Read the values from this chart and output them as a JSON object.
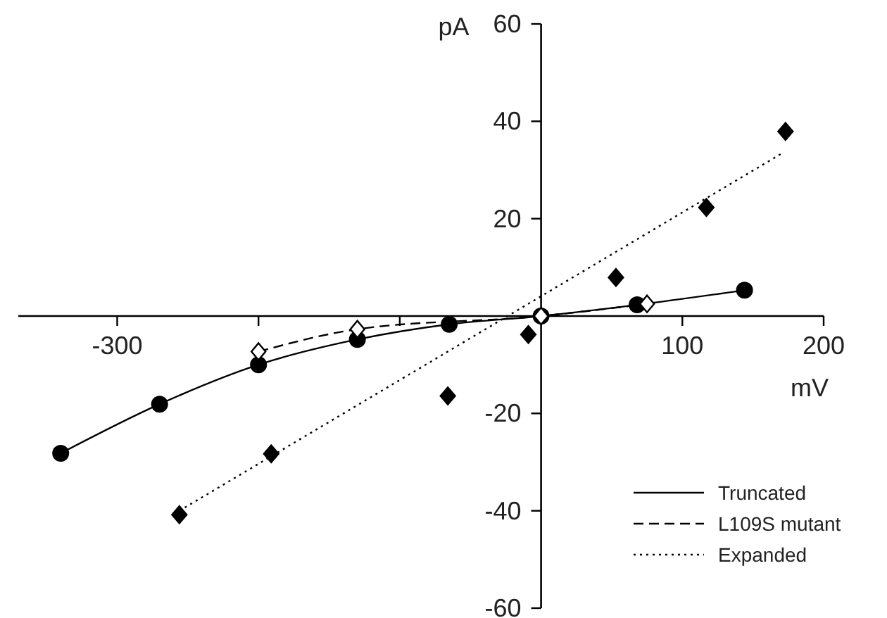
{
  "chart_data": {
    "type": "line",
    "xlabel": "mV",
    "ylabel": "pA",
    "xlim": [
      -370,
      200
    ],
    "xticks": [
      -300,
      {
        "value": -200,
        "label": null
      },
      {
        "value": -100,
        "label": null
      },
      100,
      200
    ],
    "ylim": [
      -60,
      60
    ],
    "yticks": [
      -60,
      -40,
      -20,
      20,
      40,
      60
    ],
    "legend": "bottom right",
    "grid": false,
    "series": [
      {
        "name": "Truncated",
        "color": "#000000",
        "line_style": "solid",
        "marker": "circle",
        "x": [
          -340,
          -270,
          -200,
          -130,
          -65,
          0,
          68,
          144
        ],
        "values": [
          -28.2,
          -18.1,
          -10,
          -4.8,
          -1.7,
          0,
          2.3,
          5.3
        ]
      },
      {
        "name": "L109S mutant",
        "color": "#000000",
        "line_style": "dashed",
        "marker": "diamond-open",
        "x": [
          -200,
          -130,
          0,
          75
        ],
        "values": [
          -7.3,
          -2.7,
          0,
          2.5
        ]
      },
      {
        "name": "Expanded",
        "color": "#000000",
        "line_style": "dotted",
        "marker": "none",
        "x": [
          -256,
          171
        ],
        "values": [
          -40,
          33.5
        ]
      },
      {
        "type": "scatter",
        "color": "#000000",
        "marker": "diamond",
        "x": [
          -256,
          -191,
          -66,
          -9,
          53,
          117,
          173
        ],
        "values": [
          -40.8,
          -28.3,
          -16.4,
          -3.8,
          7.9,
          22.3,
          37.9
        ]
      }
    ]
  }
}
